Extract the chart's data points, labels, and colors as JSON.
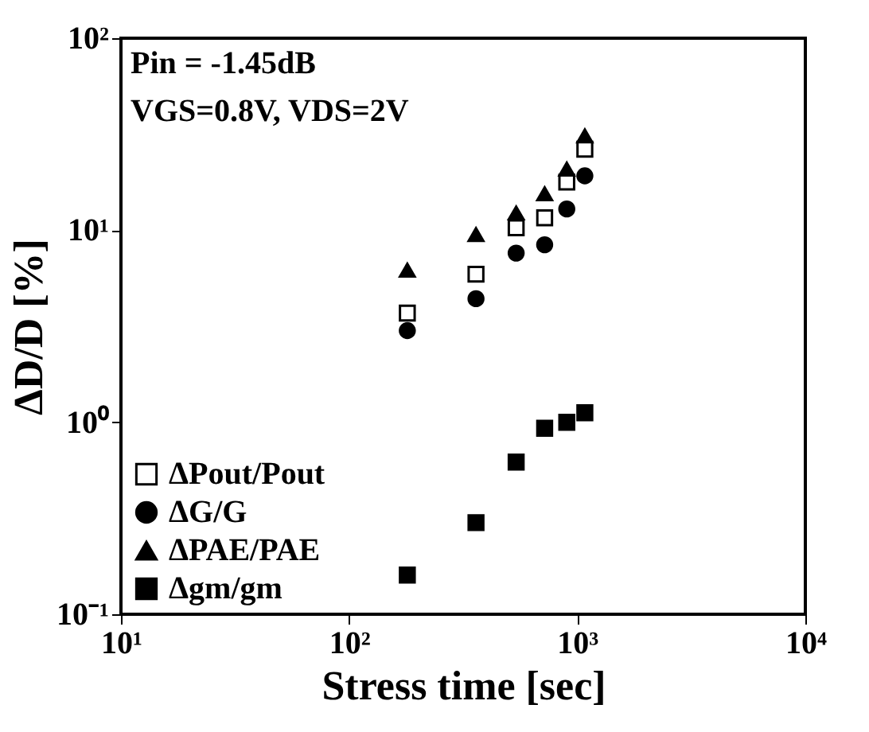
{
  "chart_data": {
    "type": "scatter",
    "xlabel": "Stress time [sec]",
    "ylabel": "ΔD/D [%]",
    "annotations": [
      "Pin = -1.45dB",
      "VGS=0.8V, VDS=2V"
    ],
    "log": "xy",
    "grid": false,
    "legend": "bottom left",
    "xlim": [
      10,
      10000
    ],
    "xticks": [
      {
        "value": 10,
        "label": "10¹"
      },
      {
        "value": 100,
        "label": "10²"
      },
      {
        "value": 1000,
        "label": "10³"
      },
      {
        "value": 10000,
        "label": "10⁴"
      }
    ],
    "ylim": [
      0.1,
      100
    ],
    "yticks": [
      {
        "value": 0.1,
        "label": "10⁻¹"
      },
      {
        "value": 1,
        "label": "10⁰"
      },
      {
        "value": 10,
        "label": "10¹"
      },
      {
        "value": 100,
        "label": "10²"
      }
    ],
    "x": [
      180,
      360,
      540,
      720,
      900,
      1080
    ],
    "series": [
      {
        "name": "ΔPout/Pout",
        "color": "#ffffff",
        "marker": "square",
        "values": [
          3.7,
          5.9,
          10.3,
          11.6,
          17.8,
          26.4
        ]
      },
      {
        "name": "ΔG/G",
        "color": "#000000",
        "marker": "circle",
        "values": [
          3.0,
          4.4,
          7.6,
          8.4,
          12.9,
          19.2
        ]
      },
      {
        "name": "ΔPAE/PAE",
        "color": "#000000",
        "marker": "triangle",
        "values": [
          6.2,
          9.5,
          12.3,
          15.5,
          20.8,
          31
        ]
      },
      {
        "name": "Δgm/gm",
        "color": "#000000",
        "marker": "square",
        "values": [
          0.16,
          0.3,
          0.62,
          0.93,
          1.0,
          1.12
        ]
      }
    ]
  }
}
